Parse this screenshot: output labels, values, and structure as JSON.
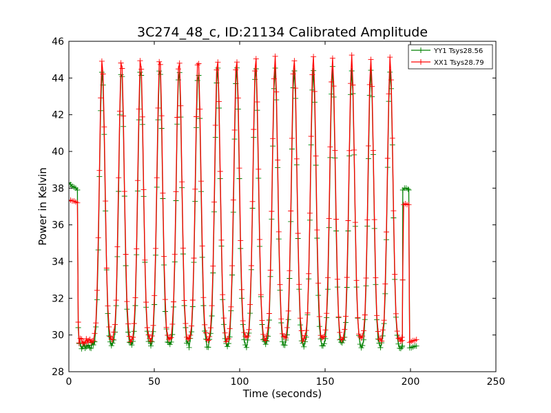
{
  "chart_data": {
    "type": "line",
    "title": "3C274_48_c, ID:21134 Calibrated Amplitude",
    "xlabel": "Time (seconds)",
    "ylabel": "Power in Kelvin",
    "xlim": [
      0,
      250
    ],
    "ylim": [
      28,
      46
    ],
    "xticks": [
      0,
      50,
      100,
      150,
      200,
      250
    ],
    "yticks": [
      28,
      30,
      32,
      34,
      36,
      38,
      40,
      42,
      44,
      46
    ],
    "grid": false,
    "legend_position": "top-right",
    "peak_times": [
      19.5,
      30.8,
      42.0,
      53.2,
      64.5,
      75.7,
      87.0,
      98.2,
      109.4,
      120.7,
      131.9,
      143.1,
      154.4,
      165.6,
      176.8,
      188.1
    ],
    "series": [
      {
        "name": "YY1 Tsys28.56",
        "color": "#008000",
        "marker": "+",
        "segments": [
          {
            "x": [
              0,
              1,
              2,
              3,
              4,
              5
            ],
            "y": [
              38.3,
              38.2,
              38.1,
              38.05,
              38.0,
              37.9
            ]
          },
          {
            "x": [
              195.5,
              196.5,
              197.5,
              198.5,
              199.0
            ],
            "y": [
              37.9,
              38.0,
              38.0,
              37.95,
              37.9
            ]
          }
        ],
        "peak_value": 44.5,
        "baseline": 29.4,
        "tail": {
          "x": [
            199.5,
            200.5,
            201.5,
            202.5,
            203.5
          ],
          "y": [
            29.3,
            29.3,
            29.35,
            29.4,
            29.4
          ]
        }
      },
      {
        "name": "XX1 Tsys28.79",
        "color": "#ff0000",
        "marker": "+",
        "segments": [
          {
            "x": [
              0,
              1,
              2,
              3,
              4,
              5
            ],
            "y": [
              37.3,
              37.35,
              37.3,
              37.3,
              37.25,
              37.2
            ]
          },
          {
            "x": [
              196,
              197,
              198,
              199
            ],
            "y": [
              37.1,
              37.15,
              37.1,
              37.1
            ]
          }
        ],
        "peak_value": 45.1,
        "baseline": 29.7,
        "tail": {
          "x": [
            199.5,
            200.5,
            201.5,
            202.5,
            203.5
          ],
          "y": [
            29.6,
            29.65,
            29.7,
            29.7,
            29.75
          ]
        }
      }
    ]
  }
}
